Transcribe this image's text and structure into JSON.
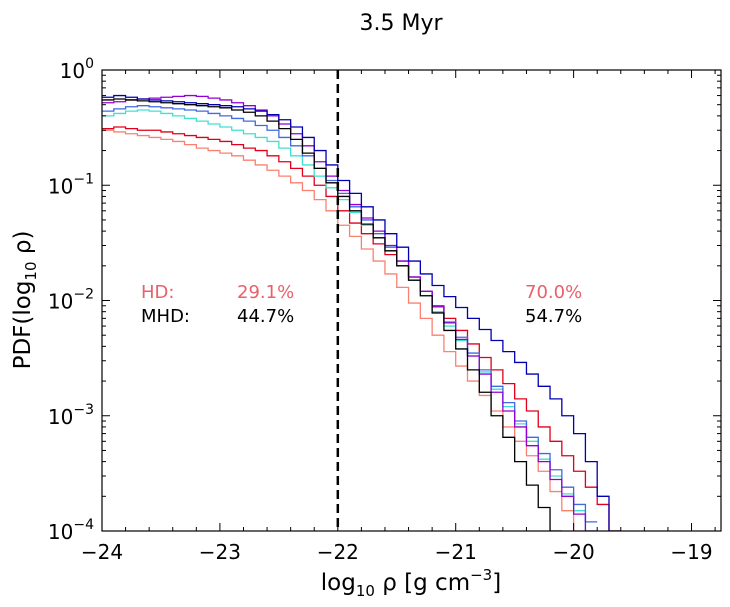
{
  "chart_data": {
    "type": "step-histogram",
    "title": "3.5 Myr",
    "xlabel": "log",
    "xlabel_sub": "10",
    "xlabel_rest": " ρ [g cm",
    "xlabel_sup": "−3",
    "xlabel_end": "]",
    "ylabel": "PDF(log",
    "ylabel_sub": "10",
    "ylabel_rest": " ρ)",
    "xlim": [
      -24,
      -18.75
    ],
    "ylim_log10": [
      -4,
      0
    ],
    "xscale": "linear",
    "yscale": "log",
    "x_ticks": [
      -24,
      -23,
      -22,
      -21,
      -20,
      -19
    ],
    "x_tick_labels": [
      "−24",
      "−23",
      "−22",
      "−21",
      "−20",
      "−19"
    ],
    "y_ticks_log10": [
      -4,
      -3,
      -2,
      -1,
      0
    ],
    "y_tick_base": "10",
    "y_tick_exponents": [
      "−4",
      "−3",
      "−2",
      "−1",
      "0"
    ],
    "threshold_x": -22,
    "threshold_style": "dashed",
    "annotations": {
      "hd_label": "HD:",
      "mhd_label": "MHD:",
      "hd_below": "29.1%",
      "mhd_below": "44.7%",
      "hd_above": "70.0%",
      "mhd_above": "54.7%",
      "hd_color": "#e8606a",
      "mhd_color": "#000000"
    },
    "x_edges": [
      -24.0,
      -23.9,
      -23.8,
      -23.7,
      -23.6,
      -23.5,
      -23.4,
      -23.3,
      -23.2,
      -23.1,
      -23.0,
      -22.9,
      -22.8,
      -22.7,
      -22.6,
      -22.5,
      -22.4,
      -22.3,
      -22.2,
      -22.1,
      -22.0,
      -21.9,
      -21.8,
      -21.7,
      -21.6,
      -21.5,
      -21.4,
      -21.3,
      -21.2,
      -21.1,
      -21.0,
      -20.9,
      -20.8,
      -20.7,
      -20.6,
      -20.5,
      -20.4,
      -20.3,
      -20.2,
      -20.1,
      -20.0,
      -19.9,
      -19.8,
      -19.7,
      -19.6
    ],
    "series": [
      {
        "name": "salmon",
        "color": "#fa8072",
        "values": [
          0.3,
          0.29,
          0.28,
          0.27,
          0.26,
          0.25,
          0.24,
          0.225,
          0.21,
          0.2,
          0.19,
          0.18,
          0.165,
          0.15,
          0.135,
          0.12,
          0.105,
          0.09,
          0.075,
          0.06,
          0.045,
          0.036,
          0.028,
          0.022,
          0.017,
          0.013,
          0.0095,
          0.007,
          0.005,
          0.0036,
          0.0027,
          0.002,
          0.0015,
          0.0011,
          0.0008,
          0.0006,
          0.00045,
          0.00033,
          0.00022,
          0.00015,
          0.0001,
          null,
          null,
          null
        ]
      },
      {
        "name": "red",
        "color": "#e0001b",
        "values": [
          0.31,
          0.32,
          0.31,
          0.3,
          0.3,
          0.29,
          0.28,
          0.27,
          0.26,
          0.25,
          0.24,
          0.225,
          0.21,
          0.2,
          0.18,
          0.16,
          0.14,
          0.12,
          0.1,
          0.08,
          0.06,
          0.047,
          0.038,
          0.031,
          0.025,
          0.02,
          0.016,
          0.012,
          0.009,
          0.007,
          0.0055,
          0.0042,
          0.0032,
          0.0025,
          0.0019,
          0.0014,
          0.0011,
          0.0008,
          0.0006,
          0.00045,
          0.00033,
          0.00024,
          0.00017,
          0.0001
        ]
      },
      {
        "name": "turquoise",
        "color": "#40e0d0",
        "values": [
          0.4,
          0.42,
          0.44,
          0.45,
          0.44,
          0.42,
          0.4,
          0.38,
          0.36,
          0.34,
          0.32,
          0.3,
          0.28,
          0.26,
          0.24,
          0.21,
          0.18,
          0.15,
          0.12,
          0.095,
          0.075,
          0.058,
          0.045,
          0.035,
          0.027,
          0.02,
          0.015,
          0.011,
          0.008,
          0.006,
          0.0045,
          0.0033,
          0.0024,
          0.0017,
          0.0012,
          0.00085,
          0.0006,
          0.00042,
          0.0003,
          0.00021,
          0.00015,
          0.0001,
          null,
          null
        ]
      },
      {
        "name": "royalblue",
        "color": "#4169e1",
        "values": [
          0.44,
          0.46,
          0.48,
          0.49,
          0.48,
          0.47,
          0.46,
          0.45,
          0.44,
          0.42,
          0.4,
          0.38,
          0.36,
          0.33,
          0.3,
          0.26,
          0.22,
          0.18,
          0.14,
          0.11,
          0.085,
          0.065,
          0.05,
          0.038,
          0.029,
          0.022,
          0.016,
          0.012,
          0.0088,
          0.0065,
          0.0048,
          0.0035,
          0.0025,
          0.0018,
          0.0013,
          0.0009,
          0.00065,
          0.00047,
          0.00034,
          0.00024,
          0.00017,
          0.00012,
          null,
          null
        ]
      },
      {
        "name": "darkviolet",
        "color": "#9400d3",
        "values": [
          0.52,
          0.53,
          0.55,
          0.56,
          0.57,
          0.58,
          0.59,
          0.6,
          0.59,
          0.57,
          0.55,
          0.52,
          0.49,
          0.45,
          0.4,
          0.34,
          0.28,
          0.22,
          0.16,
          0.12,
          0.09,
          0.068,
          0.052,
          0.04,
          0.03,
          0.022,
          0.016,
          0.012,
          0.0088,
          0.0064,
          0.0046,
          0.0033,
          0.0023,
          0.0016,
          0.0011,
          0.0008,
          0.00055,
          0.0004,
          0.00028,
          0.0002,
          0.00014,
          0.0001,
          null,
          null
        ]
      },
      {
        "name": "black",
        "color": "#000000",
        "values": [
          0.55,
          0.56,
          0.55,
          0.54,
          0.53,
          0.52,
          0.51,
          0.5,
          0.49,
          0.48,
          0.47,
          0.45,
          0.43,
          0.4,
          0.36,
          0.31,
          0.25,
          0.19,
          0.14,
          0.105,
          0.08,
          0.06,
          0.046,
          0.035,
          0.027,
          0.02,
          0.015,
          0.011,
          0.0078,
          0.0055,
          0.0038,
          0.0025,
          0.0016,
          0.001,
          0.00065,
          0.0004,
          0.00025,
          0.00016,
          0.0001,
          null,
          null,
          null,
          null,
          null
        ]
      },
      {
        "name": "darkblue",
        "color": "#0000b0",
        "values": [
          0.58,
          0.6,
          0.58,
          0.56,
          0.55,
          0.54,
          0.53,
          0.52,
          0.51,
          0.5,
          0.49,
          0.48,
          0.46,
          0.44,
          0.41,
          0.37,
          0.32,
          0.26,
          0.2,
          0.15,
          0.11,
          0.085,
          0.065,
          0.05,
          0.038,
          0.029,
          0.022,
          0.017,
          0.0135,
          0.0108,
          0.0087,
          0.007,
          0.0056,
          0.0045,
          0.0036,
          0.0029,
          0.0023,
          0.0018,
          0.0014,
          0.001,
          0.0007,
          0.0004,
          0.0002,
          0.0001
        ]
      }
    ]
  }
}
